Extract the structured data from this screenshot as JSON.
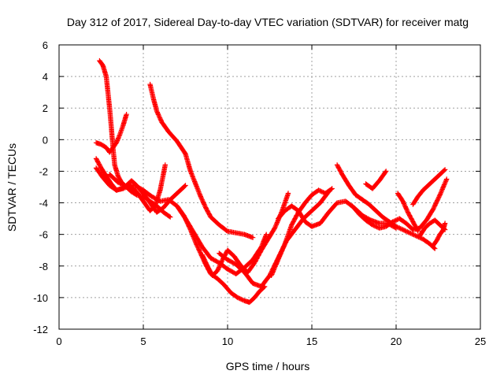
{
  "chart_data": {
    "type": "scatter",
    "title": "Day 312 of 2017, Sidereal Day-to-day VTEC variation (SDTVAR) for receiver matg",
    "xlabel": "GPS time / hours",
    "ylabel": "SDTVAR / TECUs",
    "xlim": [
      0,
      25
    ],
    "ylim": [
      -12,
      6
    ],
    "xticks": [
      0,
      5,
      10,
      15,
      20,
      25
    ],
    "yticks": [
      -12,
      -10,
      -8,
      -6,
      -4,
      -2,
      0,
      2,
      4,
      6
    ],
    "grid": true,
    "marker": "plus",
    "color": "#ff0000",
    "series": [
      {
        "x": [
          2.4,
          2.6,
          2.8,
          2.9,
          3.0,
          3.1,
          3.2,
          3.3,
          3.5,
          3.7,
          4.0,
          4.3,
          4.6,
          5.0,
          5.4,
          5.8,
          6.2,
          6.6
        ],
        "y": [
          5.0,
          4.7,
          4.0,
          3.0,
          2.0,
          0.8,
          -0.5,
          -1.6,
          -2.3,
          -2.7,
          -3.0,
          -3.3,
          -3.5,
          -3.6,
          -3.9,
          -4.2,
          -4.6,
          -4.9
        ]
      },
      {
        "x": [
          2.2,
          2.5,
          2.8,
          3.0,
          3.2,
          3.4,
          3.6,
          3.8,
          4.0
        ],
        "y": [
          -0.2,
          -0.3,
          -0.5,
          -0.8,
          -0.5,
          -0.2,
          0.3,
          0.9,
          1.6
        ]
      },
      {
        "x": [
          2.2,
          2.5,
          2.8,
          3.1,
          3.4,
          3.7,
          4.0,
          4.3,
          4.6,
          5.0,
          5.4,
          5.8,
          6.2,
          6.6,
          7.0,
          7.5
        ],
        "y": [
          -1.2,
          -1.8,
          -2.3,
          -2.8,
          -3.2,
          -3.1,
          -2.9,
          -2.6,
          -2.9,
          -3.4,
          -4.0,
          -4.6,
          -4.3,
          -3.8,
          -3.4,
          -2.9
        ]
      },
      {
        "x": [
          2.2,
          2.6,
          3.0,
          3.4,
          3.8,
          4.2,
          4.6,
          5.0,
          5.4,
          5.7,
          6.0,
          6.3
        ],
        "y": [
          -1.8,
          -2.4,
          -2.9,
          -3.2,
          -3.1,
          -2.9,
          -3.3,
          -3.9,
          -4.5,
          -4.2,
          -3.2,
          -1.6
        ]
      },
      {
        "x": [
          3.0,
          3.5,
          4.0,
          4.5,
          5.0,
          5.5,
          6.0,
          6.5,
          7.0,
          7.5,
          8.0,
          8.5,
          9.0,
          9.5,
          10.0,
          10.5,
          11.0,
          11.5,
          12.0,
          12.3
        ],
        "y": [
          -2.2,
          -2.7,
          -3.0,
          -2.9,
          -3.2,
          -3.6,
          -3.9,
          -3.8,
          -4.2,
          -5.0,
          -5.9,
          -6.8,
          -7.5,
          -7.8,
          -8.2,
          -8.5,
          -8.1,
          -7.6,
          -6.8,
          -6.0
        ]
      },
      {
        "x": [
          5.4,
          5.6,
          5.8,
          6.1,
          6.5,
          7.0,
          7.5,
          7.8,
          8.1,
          8.4,
          8.7,
          9.0,
          9.5,
          10.0,
          10.5,
          11.0,
          11.5
        ],
        "y": [
          3.5,
          2.6,
          1.8,
          1.1,
          0.5,
          -0.1,
          -0.9,
          -2.0,
          -2.8,
          -3.6,
          -4.3,
          -4.9,
          -5.4,
          -5.8,
          -5.9,
          -6.0,
          -6.2
        ]
      },
      {
        "x": [
          7.0,
          7.4,
          7.8,
          8.1,
          8.4,
          8.7,
          9.0,
          9.4,
          9.8,
          10.2,
          10.6,
          11.0,
          11.3,
          11.6,
          11.9,
          12.2
        ],
        "y": [
          -4.2,
          -4.8,
          -5.7,
          -6.5,
          -7.2,
          -7.9,
          -8.5,
          -8.8,
          -9.2,
          -9.7,
          -10.0,
          -10.2,
          -10.3,
          -10.0,
          -9.6,
          -9.3
        ]
      },
      {
        "x": [
          8.5,
          8.8,
          9.1,
          9.4,
          9.7,
          10.0,
          10.4,
          10.8,
          11.2,
          11.6,
          12.0,
          12.4,
          12.8,
          13.2,
          13.6
        ],
        "y": [
          -7.3,
          -8.0,
          -8.6,
          -8.3,
          -7.6,
          -7.0,
          -7.4,
          -8.0,
          -8.4,
          -7.8,
          -7.0,
          -6.3,
          -5.6,
          -4.6,
          -3.4
        ]
      },
      {
        "x": [
          9.5,
          10.0,
          10.5,
          11.0,
          11.5,
          12.0,
          12.5,
          13.0,
          13.5,
          14.0,
          14.5,
          15.0,
          15.5,
          16.0
        ],
        "y": [
          -7.2,
          -7.6,
          -7.9,
          -8.4,
          -9.1,
          -9.3,
          -8.6,
          -7.5,
          -6.4,
          -5.7,
          -5.0,
          -4.5,
          -4.0,
          -3.3
        ]
      },
      {
        "x": [
          12.6,
          13.0,
          13.4,
          13.8,
          14.2,
          14.6,
          15.0,
          15.4,
          15.8,
          16.2
        ],
        "y": [
          -8.6,
          -7.6,
          -6.6,
          -5.4,
          -4.6,
          -4.0,
          -3.5,
          -3.2,
          -3.4,
          -3.1
        ]
      },
      {
        "x": [
          13.0,
          13.4,
          13.8,
          14.2,
          14.6,
          15.0,
          15.5,
          16.0,
          16.5,
          17.0,
          17.5,
          18.0,
          18.5,
          19.0,
          19.5,
          20.0
        ],
        "y": [
          -5.0,
          -4.5,
          -4.2,
          -4.5,
          -5.2,
          -5.5,
          -5.3,
          -4.6,
          -4.0,
          -3.9,
          -4.3,
          -4.8,
          -5.1,
          -5.3,
          -5.3,
          -5.6
        ]
      },
      {
        "x": [
          16.5,
          16.8,
          17.2,
          17.6,
          18.0,
          18.4,
          18.8,
          19.2,
          19.6,
          20.0,
          20.4,
          20.8,
          21.2,
          21.6,
          22.0,
          22.3
        ],
        "y": [
          -1.6,
          -2.2,
          -2.9,
          -3.5,
          -3.8,
          -4.1,
          -4.5,
          -4.9,
          -5.2,
          -5.5,
          -5.7,
          -5.9,
          -6.1,
          -6.3,
          -6.6,
          -6.9
        ]
      },
      {
        "x": [
          17.4,
          17.8,
          18.2,
          18.6,
          19.0,
          19.4,
          19.8,
          20.2,
          20.6,
          21.0,
          21.4,
          21.8,
          22.2,
          22.6,
          23.0
        ],
        "y": [
          -4.2,
          -4.7,
          -5.1,
          -5.4,
          -5.6,
          -5.5,
          -5.2,
          -5.0,
          -5.3,
          -5.7,
          -5.6,
          -5.1,
          -4.4,
          -3.5,
          -2.5
        ]
      },
      {
        "x": [
          18.2,
          18.6,
          19.0,
          19.4
        ],
        "y": [
          -2.8,
          -3.1,
          -2.6,
          -2.0
        ]
      },
      {
        "x": [
          20.1,
          20.4,
          20.7,
          21.0,
          21.3
        ],
        "y": [
          -3.4,
          -3.9,
          -4.6,
          -5.2,
          -5.8
        ]
      },
      {
        "x": [
          21.0,
          21.3,
          21.6,
          21.9,
          22.2,
          22.5,
          22.8,
          22.9
        ],
        "y": [
          -4.1,
          -3.6,
          -3.2,
          -2.9,
          -2.6,
          -2.3,
          -2.0,
          -1.9
        ]
      },
      {
        "x": [
          21.4,
          21.7,
          22.0,
          22.3,
          22.6,
          22.9
        ],
        "y": [
          -6.1,
          -5.6,
          -5.3,
          -5.1,
          -5.4,
          -5.7
        ]
      },
      {
        "x": [
          22.2,
          22.4,
          22.6,
          22.8,
          22.9
        ],
        "y": [
          -6.7,
          -6.4,
          -6.0,
          -5.7,
          -5.3
        ]
      }
    ]
  }
}
